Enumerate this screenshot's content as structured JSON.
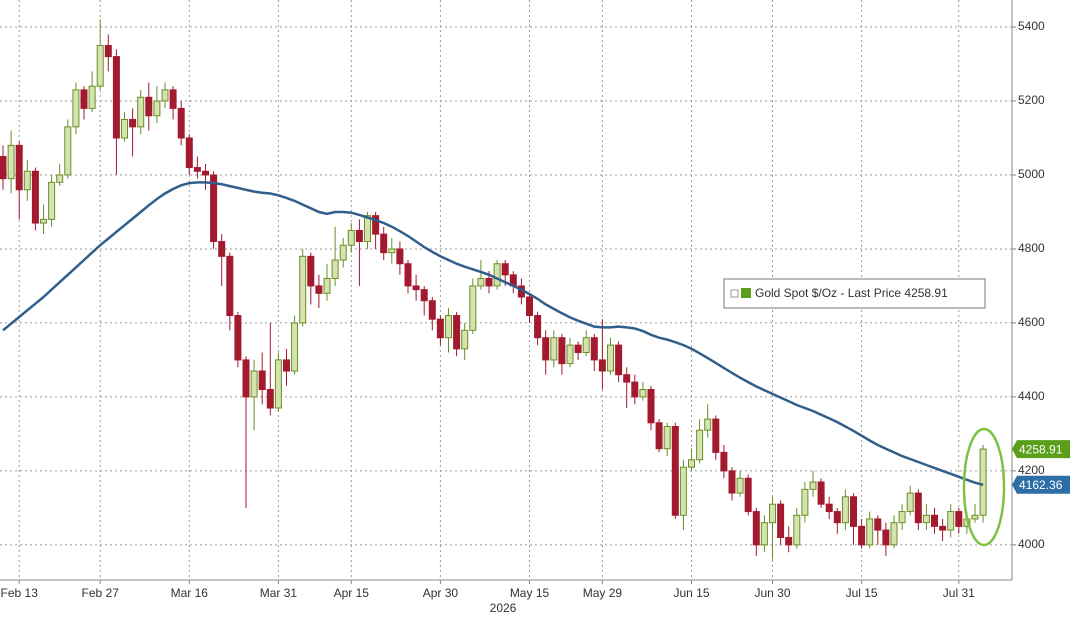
{
  "chart_data": {
    "type": "candlestick",
    "categories": [
      null,
      null,
      "Feb 13",
      null,
      null,
      null,
      null,
      null,
      null,
      null,
      null,
      null,
      "Feb 27",
      null,
      null,
      null,
      null,
      null,
      null,
      null,
      null,
      null,
      null,
      "Mar 16",
      null,
      null,
      null,
      null,
      null,
      null,
      null,
      null,
      null,
      null,
      "Mar 31",
      null,
      null,
      null,
      null,
      null,
      null,
      null,
      null,
      "Apr 15",
      null,
      null,
      null,
      null,
      null,
      null,
      null,
      null,
      null,
      null,
      "Apr 30",
      null,
      null,
      null,
      null,
      null,
      null,
      null,
      null,
      null,
      null,
      "May 15",
      null,
      null,
      null,
      null,
      null,
      null,
      null,
      null,
      "May 29",
      null,
      null,
      null,
      null,
      null,
      null,
      null,
      null,
      null,
      null,
      "Jun 15",
      null,
      null,
      null,
      null,
      null,
      null,
      null,
      null,
      null,
      "Jun 30",
      null,
      null,
      null,
      null,
      null,
      null,
      null,
      null,
      null,
      null,
      "Jul 15",
      null,
      null,
      null,
      null,
      null,
      null,
      null,
      null,
      null,
      null,
      null,
      "Jul 31",
      null,
      null,
      null
    ],
    "year_label": "2026",
    "series": [
      {
        "name": "Gold Spot $/Oz - Last Price",
        "up_color": "#6b8e23",
        "up_fill": "#d4e3b0",
        "down_color": "#a3192d",
        "open": [
          5050,
          4990,
          5080,
          4960,
          5010,
          4870,
          4880,
          4980,
          5000,
          5130,
          5230,
          5180,
          5240,
          5350,
          5320,
          5100,
          5150,
          5130,
          5210,
          5160,
          5200,
          5230,
          5180,
          5100,
          5020,
          5010,
          5000,
          4820,
          4780,
          4620,
          4500,
          4400,
          4470,
          4420,
          4370,
          4500,
          4470,
          4600,
          4780,
          4700,
          4680,
          4720,
          4770,
          4810,
          4850,
          4820,
          4890,
          4840,
          4790,
          4800,
          4760,
          4700,
          4690,
          4660,
          4610,
          4560,
          4620,
          4530,
          4580,
          4700,
          4720,
          4700,
          4760,
          4730,
          4700,
          4670,
          4620,
          4560,
          4500,
          4560,
          4490,
          4540,
          4520,
          4560,
          4500,
          4470,
          4540,
          4460,
          4440,
          4400,
          4420,
          4330,
          4260,
          4320,
          4080,
          4210,
          4230,
          4310,
          4340,
          4250,
          4200,
          4140,
          4180,
          4090,
          4000,
          4060,
          4110,
          4020,
          4000,
          4080,
          4150,
          4170,
          4110,
          4090,
          4060,
          4130,
          4050,
          4000,
          4070,
          4040,
          4000,
          4060,
          4090,
          4140,
          4060,
          4080,
          4050,
          4040,
          4090,
          4050,
          4070,
          4080
        ],
        "high": [
          5080,
          5120,
          5090,
          5040,
          5020,
          4920,
          5000,
          5030,
          5150,
          5250,
          5240,
          5280,
          5420,
          5380,
          5340,
          5170,
          5180,
          5230,
          5250,
          5240,
          5250,
          5240,
          5200,
          5110,
          5050,
          5030,
          5010,
          4840,
          4790,
          4630,
          4510,
          4500,
          4520,
          4600,
          4520,
          4530,
          4620,
          4800,
          4790,
          4730,
          4760,
          4860,
          4830,
          4870,
          4880,
          4900,
          4900,
          4860,
          4830,
          4820,
          4770,
          4730,
          4700,
          4670,
          4620,
          4640,
          4630,
          4600,
          4720,
          4770,
          4740,
          4770,
          4770,
          4740,
          4720,
          4680,
          4630,
          4580,
          4580,
          4570,
          4560,
          4550,
          4580,
          4570,
          4610,
          4560,
          4550,
          4480,
          4460,
          4440,
          4430,
          4340,
          4330,
          4330,
          4230,
          4260,
          4340,
          4380,
          4350,
          4270,
          4210,
          4200,
          4190,
          4100,
          4080,
          4130,
          4120,
          4050,
          4100,
          4170,
          4200,
          4180,
          4130,
          4100,
          4150,
          4140,
          4070,
          4090,
          4080,
          4060,
          4080,
          4110,
          4160,
          4150,
          4110,
          4100,
          4070,
          4110,
          4100,
          4090,
          4110,
          4270
        ],
        "low": [
          4960,
          4950,
          4880,
          4930,
          4850,
          4840,
          4860,
          4970,
          4990,
          5110,
          5150,
          5170,
          5230,
          5280,
          5000,
          5090,
          5050,
          5110,
          5120,
          5140,
          5180,
          5150,
          5080,
          5000,
          4990,
          4960,
          4800,
          4700,
          4580,
          4480,
          4100,
          4310,
          4380,
          4350,
          4360,
          4430,
          4460,
          4590,
          4650,
          4640,
          4660,
          4700,
          4750,
          4790,
          4700,
          4800,
          4800,
          4770,
          4760,
          4730,
          4680,
          4660,
          4620,
          4580,
          4540,
          4520,
          4510,
          4500,
          4570,
          4690,
          4680,
          4690,
          4700,
          4680,
          4650,
          4600,
          4540,
          4460,
          4480,
          4460,
          4480,
          4500,
          4510,
          4470,
          4420,
          4460,
          4440,
          4370,
          4380,
          4390,
          4310,
          4250,
          4240,
          4070,
          4040,
          4200,
          4220,
          4290,
          4230,
          4180,
          4120,
          4130,
          4080,
          3970,
          3980,
          3960,
          4000,
          3980,
          3990,
          4060,
          4130,
          4100,
          4070,
          4030,
          4040,
          4000,
          3990,
          3990,
          4000,
          3970,
          3990,
          4040,
          4080,
          4040,
          4040,
          4030,
          4010,
          4020,
          4030,
          4030,
          4060,
          4060
        ],
        "close": [
          4990,
          5080,
          4960,
          5010,
          4870,
          4880,
          4980,
          5000,
          5130,
          5230,
          5180,
          5240,
          5350,
          5320,
          5100,
          5150,
          5130,
          5210,
          5160,
          5200,
          5230,
          5180,
          5100,
          5020,
          5010,
          5000,
          4820,
          4780,
          4620,
          4500,
          4400,
          4470,
          4420,
          4370,
          4500,
          4470,
          4600,
          4780,
          4700,
          4680,
          4720,
          4770,
          4810,
          4850,
          4820,
          4890,
          4840,
          4790,
          4800,
          4760,
          4700,
          4690,
          4660,
          4610,
          4560,
          4620,
          4530,
          4580,
          4700,
          4720,
          4700,
          4760,
          4730,
          4700,
          4670,
          4620,
          4560,
          4500,
          4560,
          4490,
          4540,
          4520,
          4560,
          4500,
          4470,
          4540,
          4460,
          4440,
          4400,
          4420,
          4330,
          4260,
          4320,
          4080,
          4210,
          4230,
          4310,
          4340,
          4250,
          4200,
          4140,
          4180,
          4090,
          4000,
          4060,
          4110,
          4020,
          4000,
          4080,
          4150,
          4170,
          4110,
          4090,
          4060,
          4130,
          4050,
          4000,
          4070,
          4040,
          4000,
          4060,
          4090,
          4140,
          4060,
          4080,
          4050,
          4040,
          4090,
          4050,
          4070,
          4080,
          4258.91
        ],
        "tag_color": "#5a9e1a"
      }
    ],
    "moving_average": {
      "color": "#2f5f8a",
      "tag_color": "#2e6ea6",
      "values": [
        4580,
        4598,
        4616,
        4634,
        4652,
        4670,
        4690,
        4710,
        4730,
        4750,
        4770,
        4790,
        4810,
        4828,
        4846,
        4864,
        4882,
        4900,
        4918,
        4935,
        4950,
        4962,
        4972,
        4978,
        4980,
        4980,
        4978,
        4975,
        4970,
        4965,
        4960,
        4955,
        4952,
        4950,
        4945,
        4938,
        4930,
        4920,
        4910,
        4900,
        4895,
        4900,
        4900,
        4898,
        4892,
        4885,
        4878,
        4870,
        4860,
        4848,
        4835,
        4820,
        4805,
        4792,
        4780,
        4770,
        4760,
        4752,
        4745,
        4738,
        4730,
        4720,
        4710,
        4700,
        4690,
        4678,
        4665,
        4650,
        4638,
        4626,
        4615,
        4606,
        4598,
        4590,
        4588,
        4588,
        4590,
        4588,
        4585,
        4578,
        4568,
        4560,
        4555,
        4548,
        4540,
        4530,
        4518,
        4505,
        4492,
        4478,
        4465,
        4452,
        4440,
        4428,
        4418,
        4408,
        4398,
        4388,
        4378,
        4370,
        4362,
        4352,
        4342,
        4332,
        4320,
        4308,
        4295,
        4282,
        4270,
        4260,
        4250,
        4240,
        4232,
        4224,
        4216,
        4208,
        4200,
        4192,
        4184,
        4176,
        4168,
        4162.36
      ]
    },
    "ylim": [
      3905,
      5473
    ],
    "yticks": [
      4000,
      4200,
      4400,
      4600,
      4800,
      5000,
      5200,
      5400
    ],
    "grid": true
  }
}
